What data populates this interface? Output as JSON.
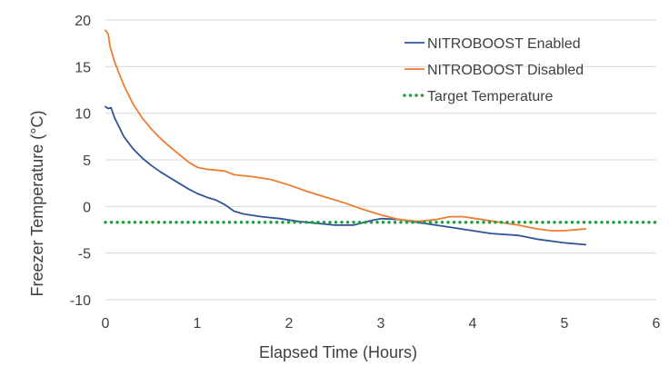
{
  "chart_data": {
    "type": "line",
    "title": "",
    "xlabel": "Elapsed Time (Hours)",
    "ylabel": "Freezer Temperature (°C)",
    "xlim": [
      0,
      6
    ],
    "ylim": [
      -10,
      20
    ],
    "x_ticks": [
      0,
      1,
      2,
      3,
      4,
      5,
      6
    ],
    "y_ticks": [
      -10,
      -5,
      0,
      5,
      10,
      15,
      20
    ],
    "grid": "horizontal",
    "legend_position": "top-right",
    "series": [
      {
        "name": "NITROBOOST Enabled",
        "color": "#2f5597",
        "style": "solid",
        "x": [
          0.0,
          0.03,
          0.06,
          0.1,
          0.2,
          0.3,
          0.4,
          0.5,
          0.6,
          0.7,
          0.8,
          0.9,
          1.0,
          1.1,
          1.2,
          1.3,
          1.4,
          1.5,
          1.7,
          1.9,
          2.1,
          2.3,
          2.5,
          2.7,
          2.9,
          3.0,
          3.2,
          3.4,
          3.6,
          3.8,
          4.0,
          4.2,
          4.5,
          4.7,
          5.0,
          5.23
        ],
        "values": [
          10.7,
          10.5,
          10.6,
          9.5,
          7.5,
          6.2,
          5.2,
          4.4,
          3.7,
          3.1,
          2.5,
          1.9,
          1.4,
          1.0,
          0.7,
          0.2,
          -0.5,
          -0.8,
          -1.1,
          -1.3,
          -1.6,
          -1.8,
          -2.0,
          -2.0,
          -1.5,
          -1.3,
          -1.4,
          -1.7,
          -2.0,
          -2.3,
          -2.6,
          -2.9,
          -3.1,
          -3.5,
          -3.9,
          -4.1
        ]
      },
      {
        "name": "NITROBOOST Disabled",
        "color": "#ed7d31",
        "style": "solid",
        "x": [
          0.0,
          0.03,
          0.05,
          0.1,
          0.2,
          0.3,
          0.4,
          0.5,
          0.6,
          0.7,
          0.8,
          0.9,
          1.0,
          1.1,
          1.3,
          1.4,
          1.6,
          1.8,
          2.0,
          2.2,
          2.4,
          2.6,
          2.8,
          3.0,
          3.2,
          3.4,
          3.6,
          3.75,
          3.9,
          4.1,
          4.3,
          4.5,
          4.7,
          4.85,
          5.0,
          5.23
        ],
        "values": [
          18.9,
          18.5,
          17.2,
          15.5,
          13.0,
          11.0,
          9.5,
          8.3,
          7.3,
          6.4,
          5.6,
          4.8,
          4.2,
          4.0,
          3.8,
          3.4,
          3.2,
          2.9,
          2.3,
          1.6,
          1.0,
          0.4,
          -0.3,
          -0.9,
          -1.4,
          -1.6,
          -1.4,
          -1.1,
          -1.1,
          -1.4,
          -1.7,
          -2.0,
          -2.4,
          -2.6,
          -2.6,
          -2.4
        ]
      },
      {
        "name": "Target Temperature",
        "color": "#1e9e3e",
        "style": "dotted",
        "x": [
          0.0,
          6.0
        ],
        "values": [
          -1.7,
          -1.7
        ]
      }
    ]
  }
}
